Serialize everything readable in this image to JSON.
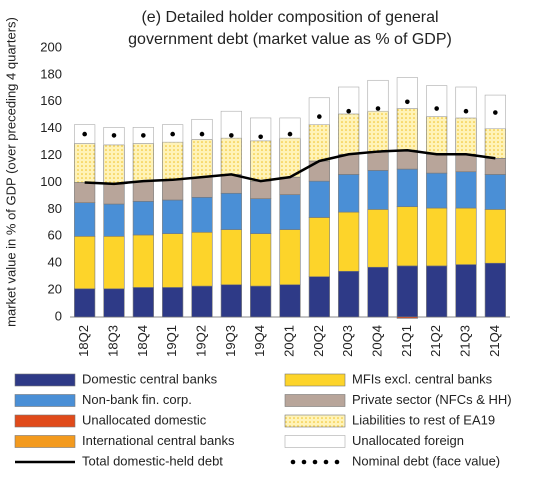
{
  "chart_data": {
    "type": "bar",
    "title": [
      "(e) Detailed holder composition of general",
      "government debt (market value as % of GDP)"
    ],
    "y_label": "market value in % of GDP (over preceding  4 quarters)",
    "categories": [
      "18Q2",
      "18Q3",
      "18Q4",
      "19Q1",
      "19Q2",
      "19Q3",
      "19Q4",
      "20Q1",
      "20Q2",
      "20Q3",
      "20Q4",
      "21Q1",
      "21Q2",
      "21Q3",
      "21Q4"
    ],
    "ylim": [
      0,
      200
    ],
    "yticks": [
      0,
      20,
      40,
      60,
      80,
      100,
      120,
      140,
      160,
      180,
      200
    ],
    "grid": false,
    "series": [
      {
        "name": "Domestic central banks",
        "type": "bar",
        "color": "#2e3a87",
        "values": [
          21,
          21,
          22,
          22,
          23,
          24,
          23,
          24,
          30,
          34,
          37,
          38,
          38,
          39,
          40
        ]
      },
      {
        "name": "MFIs excl. central banks",
        "type": "bar",
        "color": "#fdd42a",
        "values": [
          39,
          39,
          39,
          40,
          40,
          41,
          39,
          41,
          44,
          44,
          43,
          44,
          43,
          42,
          40
        ]
      },
      {
        "name": "Non-bank fin. corp.",
        "type": "bar",
        "color": "#4a8fd6",
        "values": [
          25,
          24,
          25,
          25,
          26,
          27,
          26,
          26,
          27,
          28,
          29,
          28,
          26,
          27,
          26
        ]
      },
      {
        "name": "Private sector (NFCs & HH)",
        "type": "bar",
        "color": "#b8a59a",
        "values": [
          15,
          15,
          15,
          15,
          15,
          14,
          13,
          13,
          15,
          15,
          14,
          14,
          14,
          13,
          12
        ]
      },
      {
        "name": "Unallocated domestic",
        "type": "bar",
        "color": "#e04a1a",
        "values": [
          0,
          0,
          0,
          0,
          0,
          0,
          0,
          0,
          0,
          0,
          0,
          -1,
          0,
          0,
          0
        ]
      },
      {
        "name": "Liabilities to rest of EA19",
        "type": "bar",
        "color": "#fff3b8",
        "values": [
          29,
          29,
          28,
          28,
          28,
          27,
          30,
          29,
          27,
          30,
          30,
          31,
          28,
          27,
          22
        ]
      },
      {
        "name": "International central banks",
        "type": "bar",
        "color": "#f39a1e",
        "values": [
          0,
          0,
          0,
          0,
          0,
          0,
          0,
          0,
          0,
          0,
          0,
          0,
          0,
          0,
          0
        ]
      },
      {
        "name": "Unallocated foreign",
        "type": "bar",
        "color": "#ffffff",
        "values": [
          14,
          13,
          12,
          13,
          15,
          20,
          17,
          15,
          20,
          20,
          23,
          23,
          23,
          23,
          25
        ]
      },
      {
        "name": "Total domestic-held debt",
        "type": "line",
        "color": "#000000",
        "values": [
          100,
          99,
          101,
          102,
          104,
          106,
          101,
          104,
          116,
          121,
          123,
          124,
          121,
          121,
          118
        ]
      },
      {
        "name": "Nominal debt (face value)",
        "type": "dots",
        "color": "#000000",
        "values": [
          136,
          135,
          135,
          136,
          136,
          135,
          134,
          136,
          149,
          153,
          155,
          160,
          155,
          153,
          152
        ]
      }
    ]
  }
}
